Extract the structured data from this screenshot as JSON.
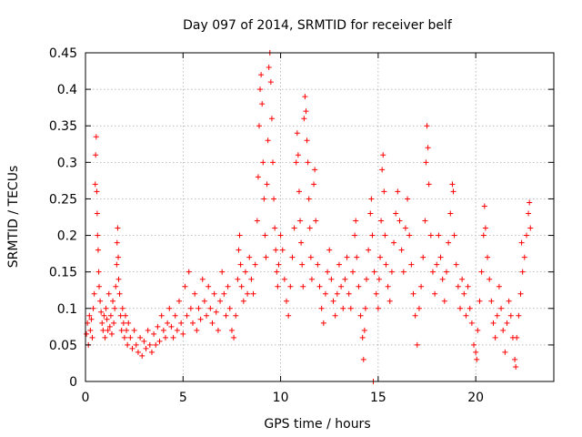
{
  "chart_data": {
    "type": "scatter",
    "title": "Day 097 of 2014, SRMTID for receiver belf",
    "xlabel": "GPS time / hours",
    "ylabel": "SRMTID / TECUs",
    "xlim": [
      0,
      24
    ],
    "ylim": [
      0,
      0.45
    ],
    "xticks": [
      0,
      5,
      10,
      15,
      20
    ],
    "xtick_labels": [
      "0",
      "5",
      "10",
      "15",
      "20"
    ],
    "yticks": [
      0,
      0.05,
      0.1,
      0.15,
      0.2,
      0.25,
      0.3,
      0.35,
      0.4,
      0.45
    ],
    "ytick_labels": [
      "0",
      "0.05",
      "0.1",
      "0.15",
      "0.2",
      "0.25",
      "0.3",
      "0.35",
      "0.4",
      "0.45"
    ],
    "grid": true,
    "marker": "plus",
    "color": "#ff0000",
    "series": [
      {
        "name": "SRMTID",
        "points": [
          [
            0.05,
            0.065
          ],
          [
            0.1,
            0.08
          ],
          [
            0.15,
            0.05
          ],
          [
            0.2,
            0.09
          ],
          [
            0.25,
            0.07
          ],
          [
            0.3,
            0.085
          ],
          [
            0.35,
            0.06
          ],
          [
            0.4,
            0.1
          ],
          [
            0.45,
            0.12
          ],
          [
            0.5,
            0.27
          ],
          [
            0.52,
            0.31
          ],
          [
            0.55,
            0.335
          ],
          [
            0.58,
            0.26
          ],
          [
            0.6,
            0.23
          ],
          [
            0.62,
            0.2
          ],
          [
            0.65,
            0.18
          ],
          [
            0.68,
            0.15
          ],
          [
            0.7,
            0.13
          ],
          [
            0.75,
            0.11
          ],
          [
            0.8,
            0.095
          ],
          [
            0.85,
            0.08
          ],
          [
            0.9,
            0.07
          ],
          [
            0.95,
            0.09
          ],
          [
            1.0,
            0.06
          ],
          [
            1.05,
            0.1
          ],
          [
            1.1,
            0.085
          ],
          [
            1.15,
            0.07
          ],
          [
            1.2,
            0.12
          ],
          [
            1.25,
            0.075
          ],
          [
            1.3,
            0.09
          ],
          [
            1.35,
            0.065
          ],
          [
            1.4,
            0.11
          ],
          [
            1.45,
            0.08
          ],
          [
            1.5,
            0.1
          ],
          [
            1.55,
            0.13
          ],
          [
            1.6,
            0.16
          ],
          [
            1.62,
            0.19
          ],
          [
            1.65,
            0.21
          ],
          [
            1.68,
            0.17
          ],
          [
            1.7,
            0.14
          ],
          [
            1.75,
            0.12
          ],
          [
            1.8,
            0.09
          ],
          [
            1.85,
            0.07
          ],
          [
            1.9,
            0.1
          ],
          [
            1.95,
            0.08
          ],
          [
            2.0,
            0.06
          ],
          [
            2.05,
            0.09
          ],
          [
            2.1,
            0.07
          ],
          [
            2.15,
            0.05
          ],
          [
            2.2,
            0.08
          ],
          [
            2.3,
            0.06
          ],
          [
            2.4,
            0.045
          ],
          [
            2.5,
            0.07
          ],
          [
            2.6,
            0.05
          ],
          [
            2.7,
            0.04
          ],
          [
            2.8,
            0.06
          ],
          [
            2.9,
            0.035
          ],
          [
            3.0,
            0.055
          ],
          [
            3.1,
            0.045
          ],
          [
            3.2,
            0.07
          ],
          [
            3.3,
            0.05
          ],
          [
            3.4,
            0.04
          ],
          [
            3.5,
            0.065
          ],
          [
            3.6,
            0.05
          ],
          [
            3.7,
            0.075
          ],
          [
            3.8,
            0.055
          ],
          [
            3.9,
            0.09
          ],
          [
            4.0,
            0.07
          ],
          [
            4.1,
            0.06
          ],
          [
            4.2,
            0.08
          ],
          [
            4.3,
            0.1
          ],
          [
            4.4,
            0.075
          ],
          [
            4.5,
            0.06
          ],
          [
            4.6,
            0.09
          ],
          [
            4.7,
            0.07
          ],
          [
            4.8,
            0.11
          ],
          [
            4.9,
            0.08
          ],
          [
            5.0,
            0.065
          ],
          [
            5.1,
            0.13
          ],
          [
            5.2,
            0.09
          ],
          [
            5.3,
            0.15
          ],
          [
            5.4,
            0.1
          ],
          [
            5.5,
            0.08
          ],
          [
            5.6,
            0.12
          ],
          [
            5.7,
            0.07
          ],
          [
            5.8,
            0.1
          ],
          [
            5.9,
            0.085
          ],
          [
            6.0,
            0.14
          ],
          [
            6.1,
            0.11
          ],
          [
            6.2,
            0.09
          ],
          [
            6.3,
            0.13
          ],
          [
            6.4,
            0.1
          ],
          [
            6.5,
            0.08
          ],
          [
            6.6,
            0.12
          ],
          [
            6.7,
            0.095
          ],
          [
            6.8,
            0.07
          ],
          [
            6.9,
            0.11
          ],
          [
            7.0,
            0.15
          ],
          [
            7.1,
            0.12
          ],
          [
            7.2,
            0.09
          ],
          [
            7.3,
            0.13
          ],
          [
            7.4,
            0.1
          ],
          [
            7.5,
            0.07
          ],
          [
            7.6,
            0.06
          ],
          [
            7.7,
            0.09
          ],
          [
            7.8,
            0.14
          ],
          [
            7.85,
            0.18
          ],
          [
            7.9,
            0.2
          ],
          [
            7.95,
            0.16
          ],
          [
            8.0,
            0.13
          ],
          [
            8.1,
            0.11
          ],
          [
            8.2,
            0.15
          ],
          [
            8.3,
            0.12
          ],
          [
            8.4,
            0.17
          ],
          [
            8.5,
            0.14
          ],
          [
            8.6,
            0.12
          ],
          [
            8.7,
            0.16
          ],
          [
            8.8,
            0.22
          ],
          [
            8.85,
            0.28
          ],
          [
            8.9,
            0.35
          ],
          [
            8.95,
            0.4
          ],
          [
            9.0,
            0.42
          ],
          [
            9.05,
            0.38
          ],
          [
            9.1,
            0.3
          ],
          [
            9.15,
            0.25
          ],
          [
            9.2,
            0.2
          ],
          [
            9.25,
            0.17
          ],
          [
            9.3,
            0.27
          ],
          [
            9.35,
            0.33
          ],
          [
            9.4,
            0.43
          ],
          [
            9.45,
            0.45
          ],
          [
            9.5,
            0.41
          ],
          [
            9.55,
            0.36
          ],
          [
            9.6,
            0.3
          ],
          [
            9.65,
            0.25
          ],
          [
            9.7,
            0.21
          ],
          [
            9.75,
            0.18
          ],
          [
            9.8,
            0.15
          ],
          [
            9.85,
            0.13
          ],
          [
            9.9,
            0.16
          ],
          [
            10.0,
            0.2
          ],
          [
            10.1,
            0.18
          ],
          [
            10.2,
            0.14
          ],
          [
            10.3,
            0.11
          ],
          [
            10.4,
            0.09
          ],
          [
            10.5,
            0.13
          ],
          [
            10.6,
            0.17
          ],
          [
            10.7,
            0.21
          ],
          [
            10.8,
            0.3
          ],
          [
            10.85,
            0.34
          ],
          [
            10.9,
            0.31
          ],
          [
            10.95,
            0.26
          ],
          [
            11.0,
            0.22
          ],
          [
            11.05,
            0.19
          ],
          [
            11.1,
            0.16
          ],
          [
            11.15,
            0.13
          ],
          [
            11.2,
            0.36
          ],
          [
            11.25,
            0.39
          ],
          [
            11.3,
            0.37
          ],
          [
            11.35,
            0.33
          ],
          [
            11.4,
            0.3
          ],
          [
            11.45,
            0.25
          ],
          [
            11.5,
            0.21
          ],
          [
            11.55,
            0.17
          ],
          [
            11.6,
            0.14
          ],
          [
            11.7,
            0.27
          ],
          [
            11.75,
            0.29
          ],
          [
            11.8,
            0.22
          ],
          [
            11.9,
            0.16
          ],
          [
            12.0,
            0.13
          ],
          [
            12.1,
            0.1
          ],
          [
            12.2,
            0.08
          ],
          [
            12.3,
            0.12
          ],
          [
            12.4,
            0.15
          ],
          [
            12.5,
            0.18
          ],
          [
            12.6,
            0.14
          ],
          [
            12.7,
            0.11
          ],
          [
            12.8,
            0.09
          ],
          [
            12.9,
            0.12
          ],
          [
            13.0,
            0.16
          ],
          [
            13.1,
            0.13
          ],
          [
            13.2,
            0.1
          ],
          [
            13.3,
            0.14
          ],
          [
            13.4,
            0.17
          ],
          [
            13.5,
            0.12
          ],
          [
            13.6,
            0.1
          ],
          [
            13.7,
            0.15
          ],
          [
            13.8,
            0.2
          ],
          [
            13.85,
            0.22
          ],
          [
            13.9,
            0.17
          ],
          [
            14.0,
            0.13
          ],
          [
            14.1,
            0.09
          ],
          [
            14.2,
            0.06
          ],
          [
            14.25,
            0.03
          ],
          [
            14.3,
            0.07
          ],
          [
            14.35,
            0.1
          ],
          [
            14.4,
            0.14
          ],
          [
            14.5,
            0.18
          ],
          [
            14.6,
            0.23
          ],
          [
            14.65,
            0.25
          ],
          [
            14.7,
            0.2
          ],
          [
            14.75,
            0.0
          ],
          [
            14.8,
            0.15
          ],
          [
            14.9,
            0.12
          ],
          [
            15.0,
            0.1
          ],
          [
            15.05,
            0.14
          ],
          [
            15.1,
            0.17
          ],
          [
            15.15,
            0.22
          ],
          [
            15.2,
            0.29
          ],
          [
            15.25,
            0.31
          ],
          [
            15.3,
            0.26
          ],
          [
            15.35,
            0.2
          ],
          [
            15.4,
            0.16
          ],
          [
            15.5,
            0.13
          ],
          [
            15.6,
            0.11
          ],
          [
            15.7,
            0.15
          ],
          [
            15.8,
            0.19
          ],
          [
            15.9,
            0.23
          ],
          [
            16.0,
            0.26
          ],
          [
            16.1,
            0.22
          ],
          [
            16.2,
            0.18
          ],
          [
            16.3,
            0.15
          ],
          [
            16.4,
            0.21
          ],
          [
            16.5,
            0.25
          ],
          [
            16.6,
            0.2
          ],
          [
            16.7,
            0.16
          ],
          [
            16.8,
            0.12
          ],
          [
            16.9,
            0.09
          ],
          [
            17.0,
            0.05
          ],
          [
            17.1,
            0.1
          ],
          [
            17.2,
            0.13
          ],
          [
            17.3,
            0.17
          ],
          [
            17.4,
            0.22
          ],
          [
            17.45,
            0.3
          ],
          [
            17.5,
            0.35
          ],
          [
            17.55,
            0.32
          ],
          [
            17.6,
            0.27
          ],
          [
            17.7,
            0.2
          ],
          [
            17.8,
            0.15
          ],
          [
            17.9,
            0.12
          ],
          [
            18.0,
            0.16
          ],
          [
            18.1,
            0.2
          ],
          [
            18.2,
            0.17
          ],
          [
            18.3,
            0.14
          ],
          [
            18.4,
            0.11
          ],
          [
            18.5,
            0.15
          ],
          [
            18.6,
            0.19
          ],
          [
            18.7,
            0.23
          ],
          [
            18.8,
            0.27
          ],
          [
            18.85,
            0.26
          ],
          [
            18.9,
            0.2
          ],
          [
            19.0,
            0.16
          ],
          [
            19.1,
            0.13
          ],
          [
            19.2,
            0.1
          ],
          [
            19.3,
            0.14
          ],
          [
            19.4,
            0.12
          ],
          [
            19.5,
            0.09
          ],
          [
            19.6,
            0.13
          ],
          [
            19.7,
            0.1
          ],
          [
            19.8,
            0.08
          ],
          [
            19.9,
            0.05
          ],
          [
            20.0,
            0.04
          ],
          [
            20.05,
            0.03
          ],
          [
            20.1,
            0.07
          ],
          [
            20.2,
            0.11
          ],
          [
            20.3,
            0.15
          ],
          [
            20.4,
            0.2
          ],
          [
            20.45,
            0.24
          ],
          [
            20.5,
            0.21
          ],
          [
            20.6,
            0.17
          ],
          [
            20.7,
            0.14
          ],
          [
            20.8,
            0.11
          ],
          [
            20.9,
            0.08
          ],
          [
            21.0,
            0.06
          ],
          [
            21.1,
            0.09
          ],
          [
            21.2,
            0.13
          ],
          [
            21.3,
            0.1
          ],
          [
            21.4,
            0.07
          ],
          [
            21.5,
            0.04
          ],
          [
            21.6,
            0.08
          ],
          [
            21.7,
            0.11
          ],
          [
            21.8,
            0.09
          ],
          [
            21.9,
            0.06
          ],
          [
            22.0,
            0.03
          ],
          [
            22.05,
            0.02
          ],
          [
            22.1,
            0.06
          ],
          [
            22.2,
            0.09
          ],
          [
            22.3,
            0.12
          ],
          [
            22.35,
            0.19
          ],
          [
            22.4,
            0.15
          ],
          [
            22.5,
            0.17
          ],
          [
            22.6,
            0.2
          ],
          [
            22.7,
            0.23
          ],
          [
            22.75,
            0.245
          ],
          [
            22.8,
            0.21
          ]
        ]
      }
    ]
  }
}
